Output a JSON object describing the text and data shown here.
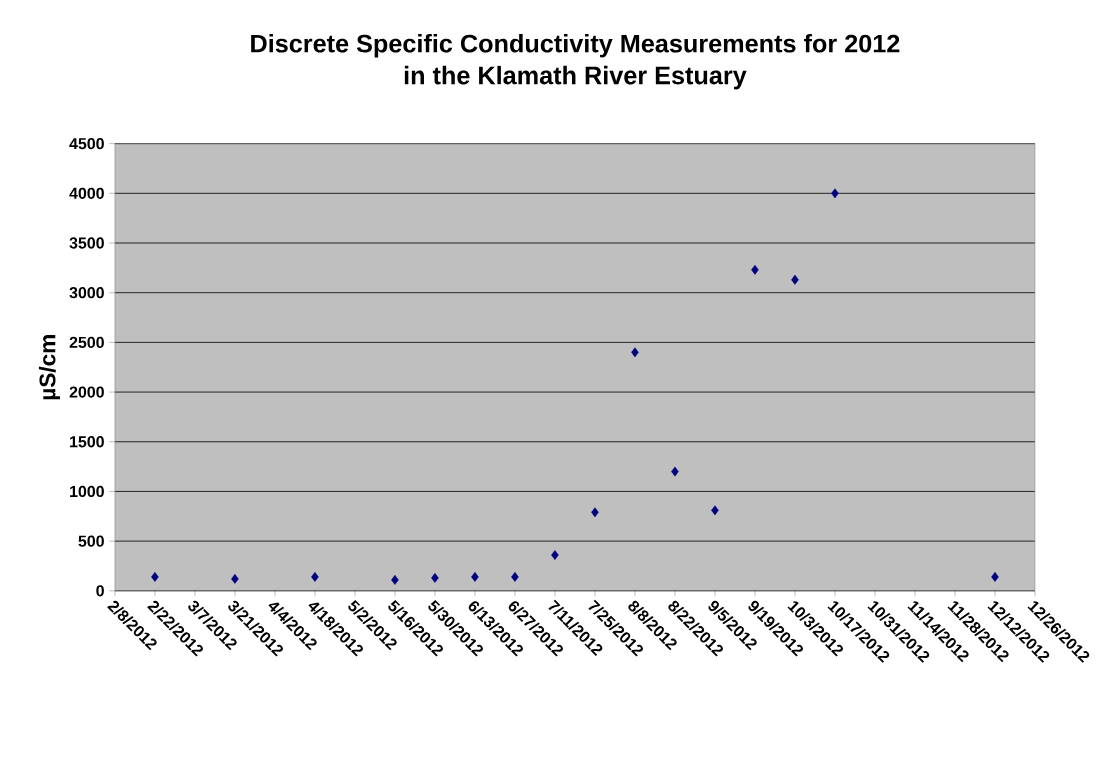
{
  "chart_data": {
    "type": "scatter",
    "title": "Discrete Specific Conductivity Measurements for 2012\nin the Klamath River Estuary",
    "ylabel": "µS/cm",
    "x": [
      "2012-02-22",
      "2012-03-21",
      "2012-04-18",
      "2012-05-16",
      "2012-05-30",
      "2012-06-13",
      "2012-06-27",
      "2012-07-11",
      "2012-07-25",
      "2012-08-08",
      "2012-08-22",
      "2012-09-05",
      "2012-09-19",
      "2012-10-03",
      "2012-10-17",
      "2012-12-12"
    ],
    "values": [
      140,
      120,
      140,
      110,
      130,
      140,
      140,
      360,
      790,
      2400,
      1200,
      810,
      3230,
      3130,
      4000,
      140
    ],
    "color": "#000080",
    "marker": "diamond",
    "grid": "y",
    "xlim": [
      "2012-02-08",
      "2012-12-26"
    ],
    "xticks": [
      {
        "value": "2012-02-08",
        "label": "2/8/2012"
      },
      {
        "value": "2012-02-22",
        "label": "2/22/2012"
      },
      {
        "value": "2012-03-07",
        "label": "3/7/2012"
      },
      {
        "value": "2012-03-21",
        "label": "3/21/2012"
      },
      {
        "value": "2012-04-04",
        "label": "4/4/2012"
      },
      {
        "value": "2012-04-18",
        "label": "4/18/2012"
      },
      {
        "value": "2012-05-02",
        "label": "5/2/2012"
      },
      {
        "value": "2012-05-16",
        "label": "5/16/2012"
      },
      {
        "value": "2012-05-30",
        "label": "5/30/2012"
      },
      {
        "value": "2012-06-13",
        "label": "6/13/2012"
      },
      {
        "value": "2012-06-27",
        "label": "6/27/2012"
      },
      {
        "value": "2012-07-11",
        "label": "7/11/2012"
      },
      {
        "value": "2012-07-25",
        "label": "7/25/2012"
      },
      {
        "value": "2012-08-08",
        "label": "8/8/2012"
      },
      {
        "value": "2012-08-22",
        "label": "8/22/2012"
      },
      {
        "value": "2012-09-05",
        "label": "9/5/2012"
      },
      {
        "value": "2012-09-19",
        "label": "9/19/2012"
      },
      {
        "value": "2012-10-03",
        "label": "10/3/2012"
      },
      {
        "value": "2012-10-17",
        "label": "10/17/2012"
      },
      {
        "value": "2012-10-31",
        "label": "10/31/2012"
      },
      {
        "value": "2012-11-14",
        "label": "11/14/2012"
      },
      {
        "value": "2012-11-28",
        "label": "11/28/2012"
      },
      {
        "value": "2012-12-12",
        "label": "12/12/2012"
      },
      {
        "value": "2012-12-26",
        "label": "12/26/2012"
      }
    ],
    "ylim": [
      0,
      4500
    ],
    "yticks": [
      0,
      500,
      1000,
      1500,
      2000,
      2500,
      3000,
      3500,
      4000,
      4500
    ]
  }
}
